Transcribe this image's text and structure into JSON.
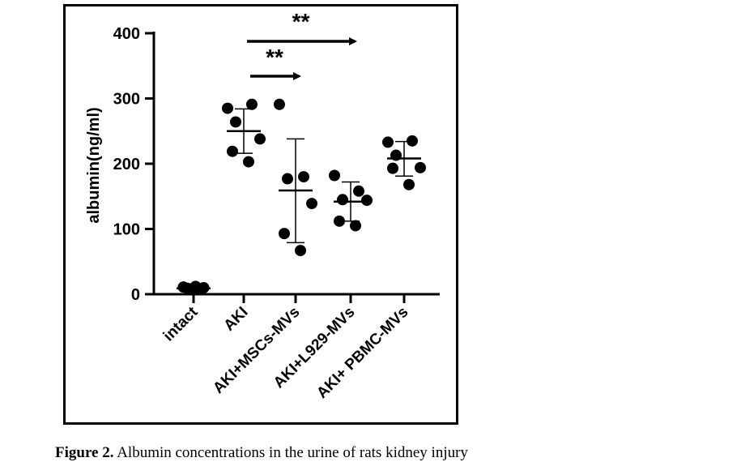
{
  "chart_data": {
    "type": "scatter",
    "ylabel": "albumin(ng/ml)",
    "xlabel": "",
    "ylim": [
      0,
      400
    ],
    "yticks": [
      0,
      100,
      200,
      300,
      400
    ],
    "grid": false,
    "categories": [
      "intact",
      "AKI",
      "AKI+MSCs-MVs",
      "AKI+L929-MVs",
      "AKI+ PBMC-MVs"
    ],
    "groups": [
      {
        "name": "intact",
        "points": [
          11,
          9,
          8,
          12,
          7,
          10
        ],
        "mean": 9,
        "sd_low": 7,
        "sd_high": 11
      },
      {
        "name": "AKI",
        "points": [
          285,
          291,
          264,
          238,
          219,
          203
        ],
        "mean": 250,
        "sd_low": 216,
        "sd_high": 284
      },
      {
        "name": "AKI+MSCs-MVs",
        "points": [
          291,
          180,
          177,
          139,
          93,
          67
        ],
        "mean": 159,
        "sd_low": 79,
        "sd_high": 238
      },
      {
        "name": "AKI+L929-MVs",
        "points": [
          182,
          158,
          145,
          144,
          112,
          105
        ],
        "mean": 142,
        "sd_low": 112,
        "sd_high": 172
      },
      {
        "name": "AKI+ PBMC-MVs",
        "points": [
          233,
          235,
          213,
          194,
          193,
          168
        ],
        "mean": 208,
        "sd_low": 181,
        "sd_high": 234
      }
    ],
    "annotations": [
      {
        "text": "**",
        "from": "AKI",
        "to": "AKI+ PBMC-MVs"
      },
      {
        "text": "**",
        "from": "AKI",
        "to": "AKI+MSCs-MVs"
      }
    ]
  },
  "caption": {
    "label": "Figure 2.",
    "text": "Albumin concentrations in the urine of rats kidney injury"
  }
}
